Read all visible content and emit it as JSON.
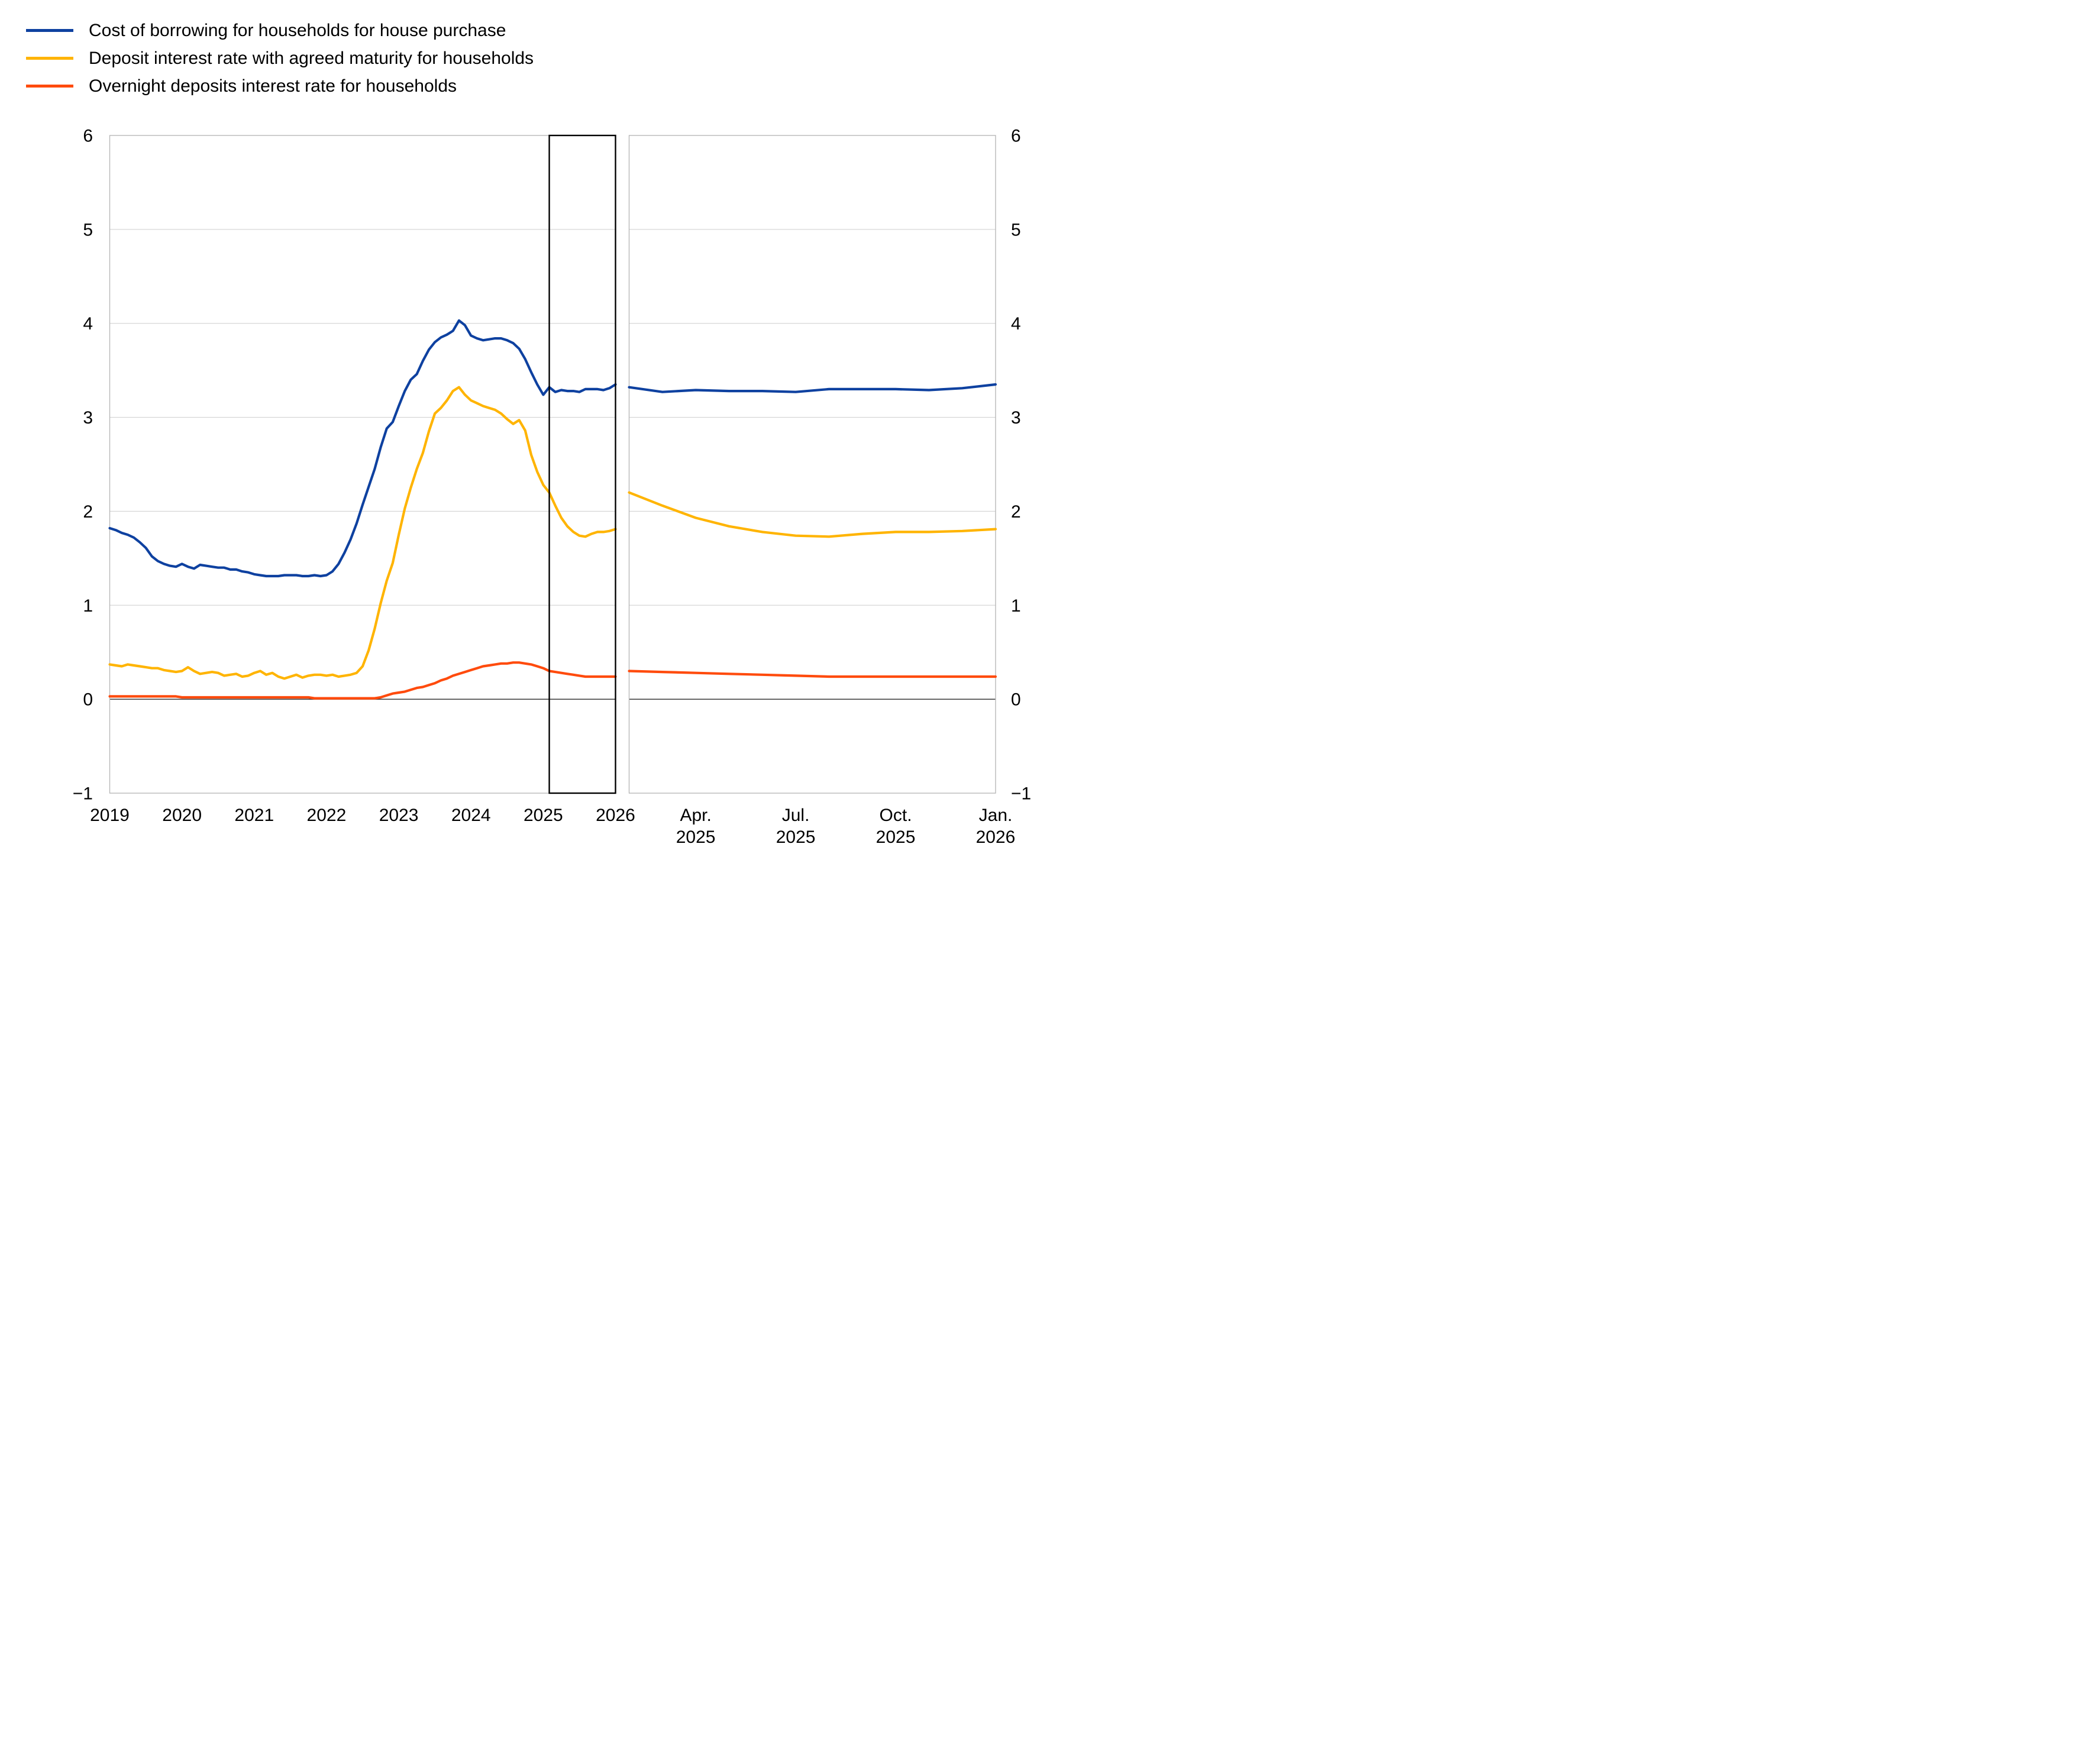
{
  "legend": {
    "items": [
      {
        "label": "Cost of borrowing for households for house purchase",
        "color": "#0e41a0",
        "icon": "line-swatch-blue"
      },
      {
        "label": "Deposit interest rate with agreed maturity for households",
        "color": "#ffb400",
        "icon": "line-swatch-yellow"
      },
      {
        "label": "Overnight deposits interest rate for households",
        "color": "#ff4b0d",
        "icon": "line-swatch-red"
      }
    ]
  },
  "axes": {
    "y_tick_labels": [
      "6",
      "5",
      "4",
      "3",
      "2",
      "1",
      "0",
      "−1"
    ],
    "y_tick_values": [
      6,
      5,
      4,
      3,
      2,
      1,
      0,
      -1
    ],
    "grid_color": "#cdcdcd",
    "zero_line_color": "#262626",
    "border_color": "#b4b4b4",
    "highlight_box_color": "#000000"
  },
  "chart_data": [
    {
      "type": "line",
      "panel": "full-history",
      "x_unit": "month",
      "x_start": "2019-01",
      "x_end": "2026-01",
      "x_tick_labels": [
        "2019",
        "2020",
        "2021",
        "2022",
        "2023",
        "2024",
        "2025",
        "2026"
      ],
      "ylim": [
        -1,
        6
      ],
      "grid": "horizontal",
      "legend_position": "top-left",
      "highlight_box": {
        "from_month_index": 73,
        "to_month_index": 84,
        "note": "Feb 2025 - Jan 2026, period shown in right panel"
      },
      "series": [
        {
          "name": "Cost of borrowing for households for house purchase",
          "color": "#0e41a0",
          "values": [
            1.82,
            1.8,
            1.77,
            1.75,
            1.72,
            1.67,
            1.61,
            1.52,
            1.47,
            1.44,
            1.42,
            1.41,
            1.44,
            1.41,
            1.39,
            1.43,
            1.42,
            1.41,
            1.4,
            1.4,
            1.38,
            1.38,
            1.36,
            1.35,
            1.33,
            1.32,
            1.31,
            1.31,
            1.31,
            1.32,
            1.32,
            1.32,
            1.31,
            1.31,
            1.32,
            1.31,
            1.32,
            1.36,
            1.44,
            1.56,
            1.7,
            1.87,
            2.07,
            2.26,
            2.45,
            2.68,
            2.88,
            2.95,
            3.12,
            3.28,
            3.4,
            3.46,
            3.6,
            3.72,
            3.8,
            3.85,
            3.88,
            3.92,
            4.03,
            3.98,
            3.87,
            3.84,
            3.82,
            3.83,
            3.84,
            3.84,
            3.82,
            3.79,
            3.73,
            3.62,
            3.48,
            3.35,
            3.24,
            3.32,
            3.27,
            3.29,
            3.28,
            3.28,
            3.27,
            3.3,
            3.3,
            3.3,
            3.29,
            3.31,
            3.35
          ]
        },
        {
          "name": "Deposit interest rate with agreed maturity for households",
          "color": "#ffb400",
          "values": [
            0.37,
            0.36,
            0.35,
            0.37,
            0.36,
            0.35,
            0.34,
            0.33,
            0.33,
            0.31,
            0.3,
            0.29,
            0.3,
            0.34,
            0.3,
            0.27,
            0.28,
            0.29,
            0.28,
            0.25,
            0.26,
            0.27,
            0.24,
            0.25,
            0.28,
            0.3,
            0.26,
            0.28,
            0.24,
            0.22,
            0.24,
            0.26,
            0.23,
            0.25,
            0.26,
            0.26,
            0.25,
            0.26,
            0.24,
            0.25,
            0.26,
            0.28,
            0.35,
            0.52,
            0.75,
            1.02,
            1.26,
            1.45,
            1.75,
            2.03,
            2.25,
            2.45,
            2.62,
            2.85,
            3.04,
            3.1,
            3.18,
            3.28,
            3.32,
            3.24,
            3.18,
            3.15,
            3.12,
            3.1,
            3.08,
            3.04,
            2.98,
            2.93,
            2.97,
            2.86,
            2.6,
            2.42,
            2.28,
            2.2,
            2.06,
            1.93,
            1.84,
            1.78,
            1.74,
            1.73,
            1.76,
            1.78,
            1.78,
            1.79,
            1.81
          ]
        },
        {
          "name": "Overnight deposits interest rate for households",
          "color": "#ff4b0d",
          "values": [
            0.03,
            0.03,
            0.03,
            0.03,
            0.03,
            0.03,
            0.03,
            0.03,
            0.03,
            0.03,
            0.03,
            0.03,
            0.02,
            0.02,
            0.02,
            0.02,
            0.02,
            0.02,
            0.02,
            0.02,
            0.02,
            0.02,
            0.02,
            0.02,
            0.02,
            0.02,
            0.02,
            0.02,
            0.02,
            0.02,
            0.02,
            0.02,
            0.02,
            0.02,
            0.01,
            0.01,
            0.01,
            0.01,
            0.01,
            0.01,
            0.01,
            0.01,
            0.01,
            0.01,
            0.01,
            0.02,
            0.04,
            0.06,
            0.07,
            0.08,
            0.1,
            0.12,
            0.13,
            0.15,
            0.17,
            0.2,
            0.22,
            0.25,
            0.27,
            0.29,
            0.31,
            0.33,
            0.35,
            0.36,
            0.37,
            0.38,
            0.38,
            0.39,
            0.39,
            0.38,
            0.37,
            0.35,
            0.33,
            0.3,
            0.29,
            0.28,
            0.27,
            0.26,
            0.25,
            0.24,
            0.24,
            0.24,
            0.24,
            0.24,
            0.24
          ]
        }
      ]
    },
    {
      "type": "line",
      "panel": "zoom-last-12-months",
      "x_unit": "month",
      "x_start": "2025-02",
      "x_end": "2026-01",
      "x_tick_positions": [
        2,
        5,
        8,
        11
      ],
      "x_tick_labels": [
        {
          "line1": "Apr.",
          "line2": "2025"
        },
        {
          "line1": "Jul.",
          "line2": "2025"
        },
        {
          "line1": "Oct.",
          "line2": "2025"
        },
        {
          "line1": "Jan.",
          "line2": "2026"
        }
      ],
      "ylim": [
        -1,
        6
      ],
      "grid": "horizontal",
      "series": [
        {
          "name": "Cost of borrowing for households for house purchase",
          "color": "#0e41a0",
          "values": [
            3.32,
            3.27,
            3.29,
            3.28,
            3.28,
            3.27,
            3.3,
            3.3,
            3.3,
            3.29,
            3.31,
            3.35
          ]
        },
        {
          "name": "Deposit interest rate with agreed maturity for households",
          "color": "#ffb400",
          "values": [
            2.2,
            2.06,
            1.93,
            1.84,
            1.78,
            1.74,
            1.73,
            1.76,
            1.78,
            1.78,
            1.79,
            1.81
          ]
        },
        {
          "name": "Overnight deposits interest rate for households",
          "color": "#ff4b0d",
          "values": [
            0.3,
            0.29,
            0.28,
            0.27,
            0.26,
            0.25,
            0.24,
            0.24,
            0.24,
            0.24,
            0.24,
            0.24
          ]
        }
      ]
    }
  ]
}
